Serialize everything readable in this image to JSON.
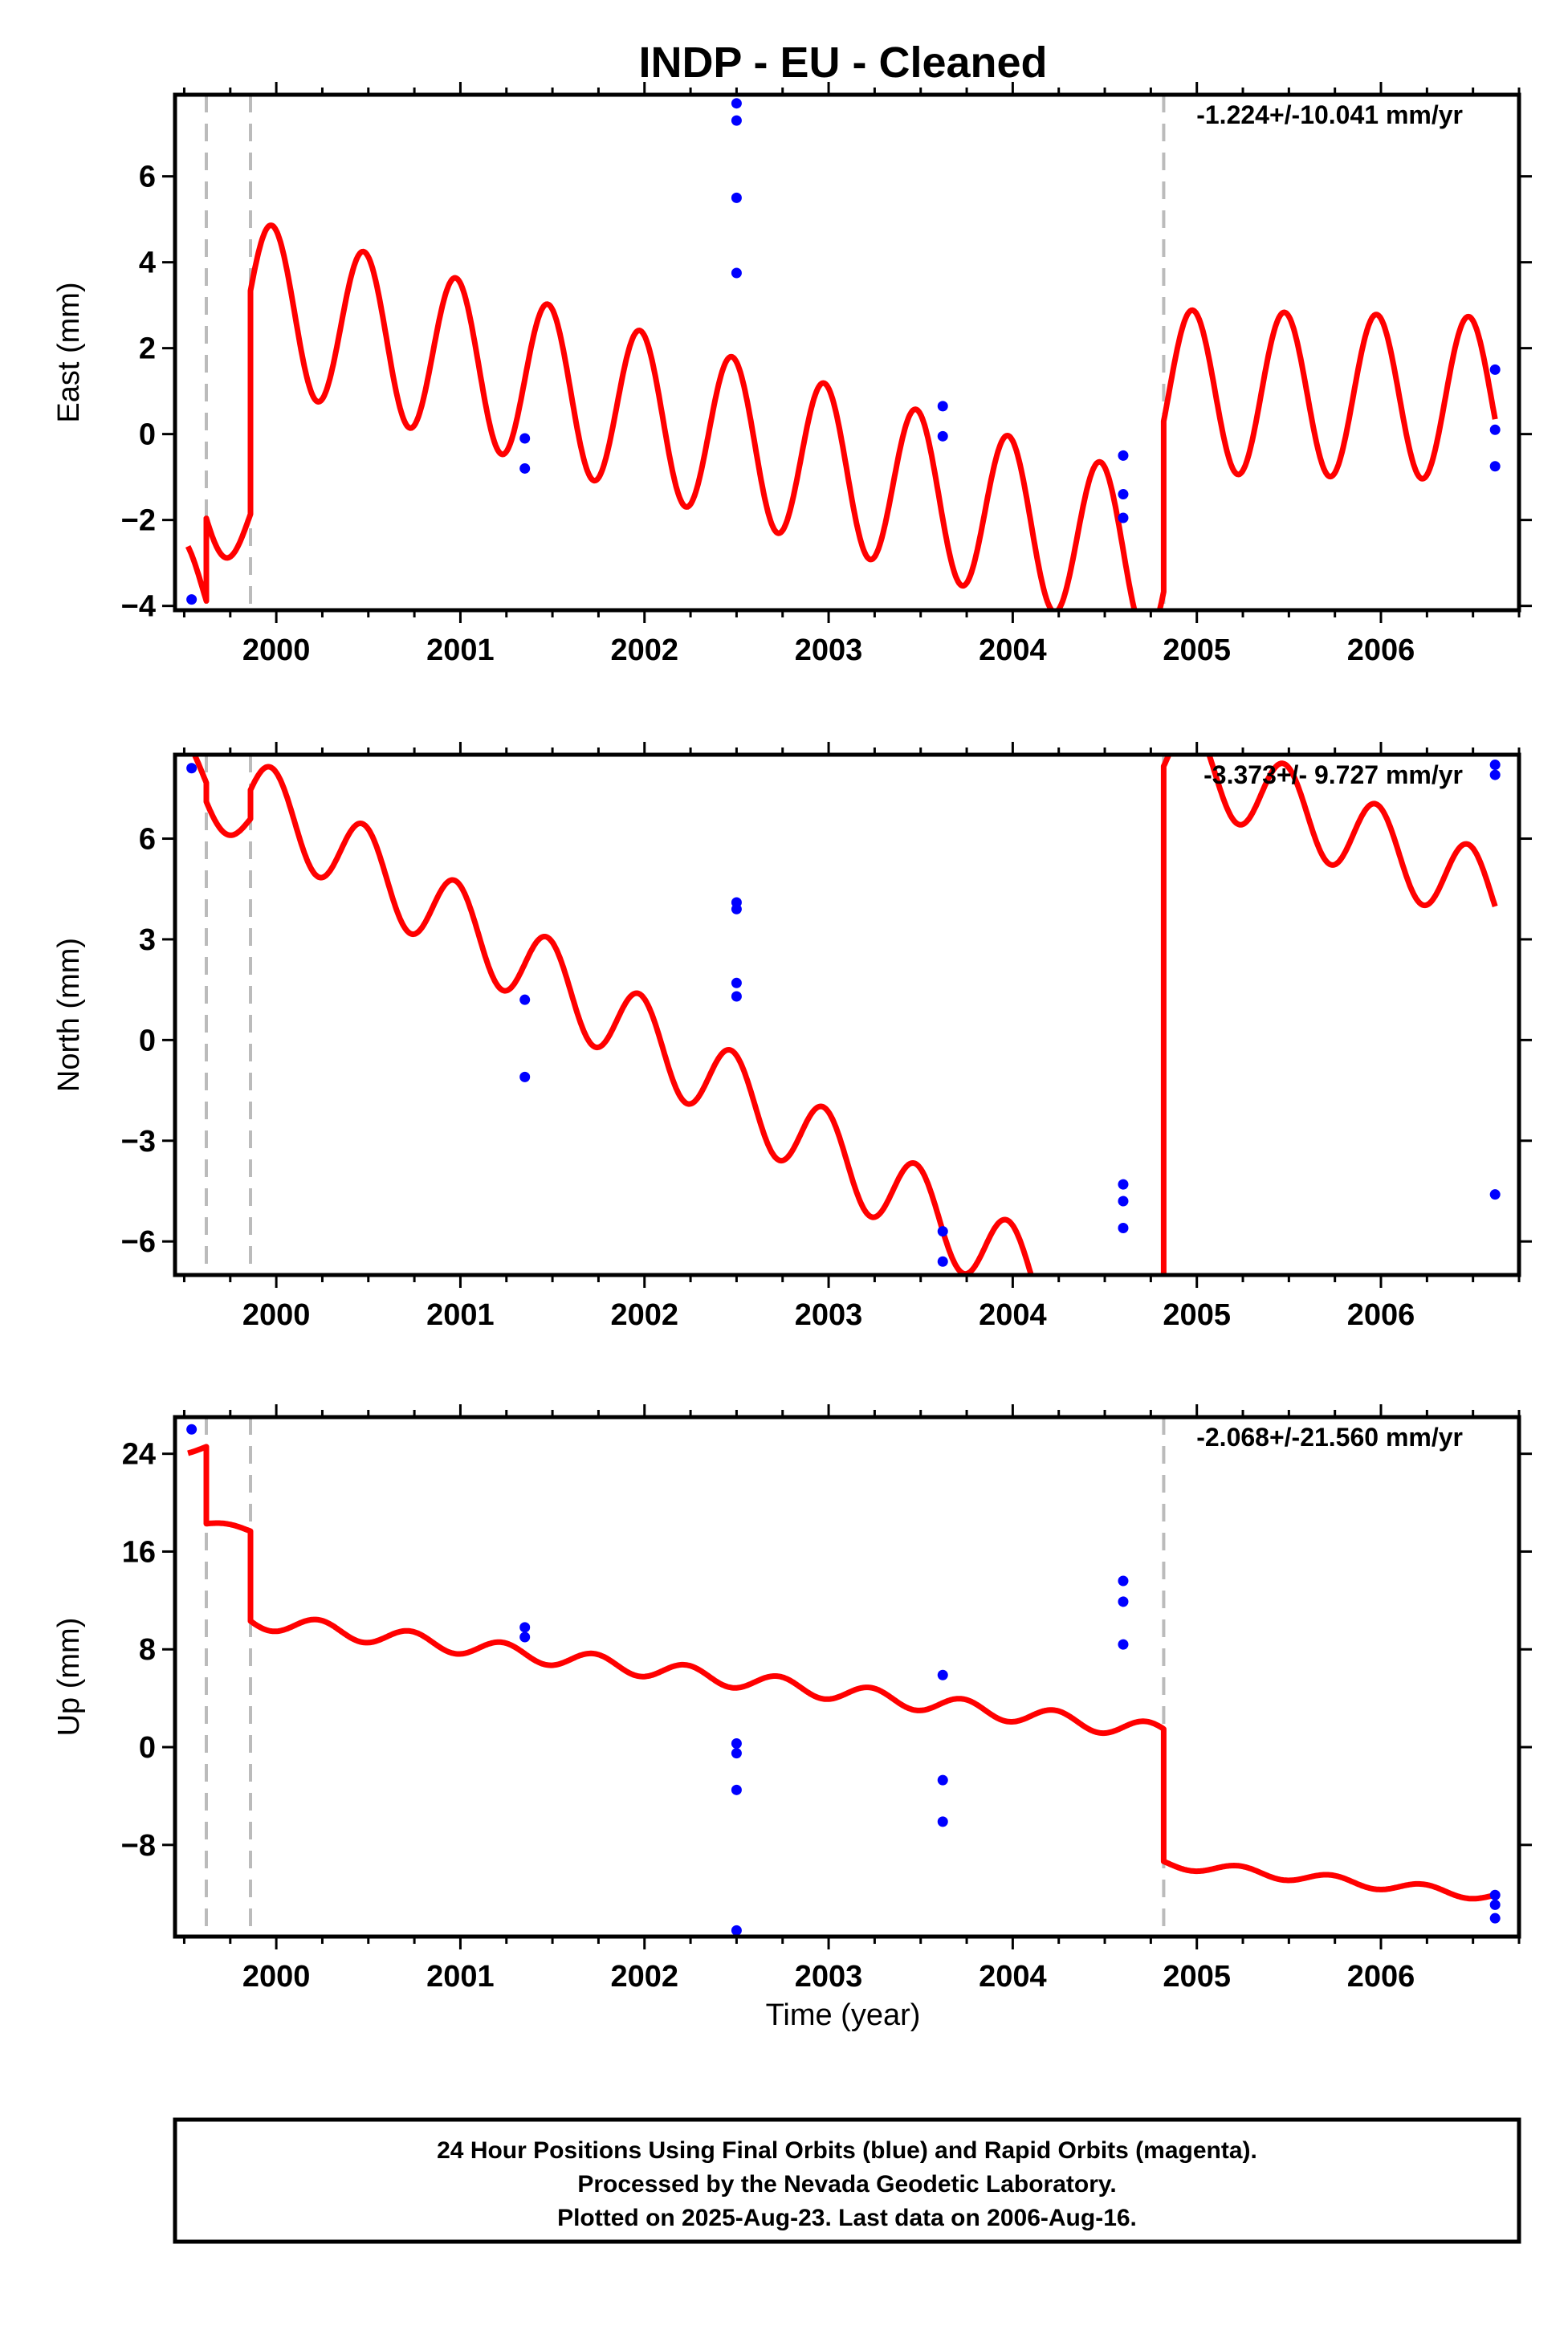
{
  "title": "INDP  - EU - Cleaned",
  "xlabel": "Time (year)",
  "footer": [
    "24 Hour Positions Using Final Orbits (blue) and Rapid Orbits (magenta).",
    "Processed by the Nevada Geodetic Laboratory.",
    "Plotted on 2025-Aug-23. Last data on 2006-Aug-16."
  ],
  "colors": {
    "final": "#0000ff",
    "model": "#ff0000",
    "breaks": "#bbbbbb",
    "axes": "#000000"
  },
  "chart_data": [
    {
      "type": "scatter",
      "name": "east",
      "ylabel": "East (mm)",
      "rate": "-1.224+/-10.041 mm/yr",
      "xlim": [
        1999.45,
        2006.75
      ],
      "ylim": [
        -4.1,
        7.9
      ],
      "xticks": [
        2000,
        2001,
        2002,
        2003,
        2004,
        2005,
        2006
      ],
      "yticks": [
        -4,
        -2,
        0,
        2,
        4,
        6
      ],
      "ytick_labels": [
        "−4",
        "−2",
        "0",
        "2",
        "4",
        "6"
      ],
      "breaks": [
        1999.62,
        1999.86,
        2004.82
      ],
      "points": [
        [
          1999.54,
          -3.85
        ],
        [
          2001.35,
          -0.1
        ],
        [
          2001.35,
          -0.8
        ],
        [
          2002.5,
          7.7
        ],
        [
          2002.5,
          7.3
        ],
        [
          2002.5,
          5.5
        ],
        [
          2002.5,
          3.75
        ],
        [
          2003.62,
          0.65
        ],
        [
          2003.62,
          -0.05
        ],
        [
          2004.6,
          -0.5
        ],
        [
          2004.6,
          -1.4
        ],
        [
          2004.6,
          -1.95
        ],
        [
          2006.62,
          1.5
        ],
        [
          2006.62,
          0.1
        ],
        [
          2006.62,
          -0.75
        ]
      ],
      "model": {
        "segments": [
          {
            "x0": 1999.52,
            "x1": 1999.62,
            "base0": -3.5,
            "slope": -1.224,
            "amp": 1.05,
            "phase": 0.85
          },
          {
            "x0": 1999.62,
            "x1": 1999.86,
            "base0": -1.7,
            "slope": -1.224,
            "amp": 1.05,
            "phase": 0.85
          },
          {
            "x0": 1999.86,
            "x1": 2004.82,
            "base0": 3.1,
            "slope": -1.224,
            "amp": 1.9,
            "phase": 0.85
          },
          {
            "x0": 2004.82,
            "x1": 2006.62,
            "base0": 1.0,
            "slope": -0.1,
            "amp": 1.9,
            "phase": 0.85
          }
        ]
      }
    },
    {
      "type": "scatter",
      "name": "north",
      "ylabel": "North (mm)",
      "rate": "-3.373+/- 9.727 mm/yr",
      "xlim": [
        1999.45,
        2006.75
      ],
      "ylim": [
        -7.0,
        8.5
      ],
      "xticks": [
        2000,
        2001,
        2002,
        2003,
        2004,
        2005,
        2006
      ],
      "yticks": [
        -6,
        -3,
        0,
        3,
        6
      ],
      "ytick_labels": [
        "−6",
        "−3",
        "0",
        "3",
        "6"
      ],
      "breaks": [
        1999.62,
        1999.86,
        2004.82
      ],
      "points": [
        [
          1999.54,
          8.1
        ],
        [
          2001.35,
          1.2
        ],
        [
          2001.35,
          -1.1
        ],
        [
          2002.5,
          4.1
        ],
        [
          2002.5,
          3.9
        ],
        [
          2002.5,
          1.7
        ],
        [
          2002.5,
          1.3
        ],
        [
          2003.62,
          -5.7
        ],
        [
          2003.62,
          -6.6
        ],
        [
          2004.6,
          -4.3
        ],
        [
          2004.6,
          -4.8
        ],
        [
          2004.6,
          -5.6
        ],
        [
          2006.62,
          8.2
        ],
        [
          2006.62,
          7.9
        ],
        [
          2006.62,
          -4.6
        ]
      ],
      "model": {
        "segments": [
          {
            "x0": 1999.52,
            "x1": 1999.62,
            "base0": 8.2,
            "slope": -3.373,
            "amp": 0.8,
            "phase": 0.85
          },
          {
            "x0": 1999.62,
            "x1": 1999.86,
            "base0": 7.3,
            "slope": -3.373,
            "amp": 0.8,
            "phase": 0.85
          },
          {
            "x0": 1999.86,
            "x1": 2004.82,
            "base0": 7.3,
            "slope": -3.373,
            "amp": 1.2,
            "phase": 0.85
          },
          {
            "x0": 2004.82,
            "x1": 2006.62,
            "base0": 8.6,
            "slope": -2.4,
            "amp": 1.2,
            "phase": 0.85
          }
        ]
      }
    },
    {
      "type": "scatter",
      "name": "up",
      "ylabel": "Up (mm)",
      "rate": "-2.068+/-21.560 mm/yr",
      "xlim": [
        1999.45,
        2006.75
      ],
      "ylim": [
        -15.5,
        27.0
      ],
      "xticks": [
        2000,
        2001,
        2002,
        2003,
        2004,
        2005,
        2006
      ],
      "yticks": [
        -8,
        0,
        8,
        16,
        24
      ],
      "ytick_labels": [
        "−8",
        "0",
        "8",
        "16",
        "24"
      ],
      "breaks": [
        1999.62,
        1999.86,
        2004.82
      ],
      "points": [
        [
          1999.54,
          26.0
        ],
        [
          2001.35,
          9.8
        ],
        [
          2001.35,
          9.0
        ],
        [
          2002.5,
          0.3
        ],
        [
          2002.5,
          -0.5
        ],
        [
          2002.5,
          -3.5
        ],
        [
          2002.5,
          -15.0
        ],
        [
          2003.62,
          5.9
        ],
        [
          2003.62,
          -2.7
        ],
        [
          2003.62,
          -6.1
        ],
        [
          2004.6,
          13.6
        ],
        [
          2004.6,
          11.9
        ],
        [
          2004.6,
          8.4
        ],
        [
          2006.62,
          -12.1
        ],
        [
          2006.62,
          -12.9
        ],
        [
          2006.62,
          -14.0
        ]
      ],
      "model": {
        "segments": [
          {
            "x0": 1999.52,
            "x1": 1999.62,
            "base0": 24.3,
            "slope": 2.0,
            "amp": 0.3,
            "phase": 0.6
          },
          {
            "x0": 1999.62,
            "x1": 1999.86,
            "base0": 18.2,
            "slope": -2.068,
            "amp": 0.3,
            "phase": 0.6
          },
          {
            "x0": 1999.86,
            "x1": 2004.82,
            "base0": 10.4,
            "slope": -1.85,
            "amp": 0.7,
            "phase": 0.6
          },
          {
            "x0": 2004.82,
            "x1": 2006.62,
            "base0": -9.5,
            "slope": -1.5,
            "amp": 0.4,
            "phase": 0.6
          }
        ]
      }
    }
  ]
}
